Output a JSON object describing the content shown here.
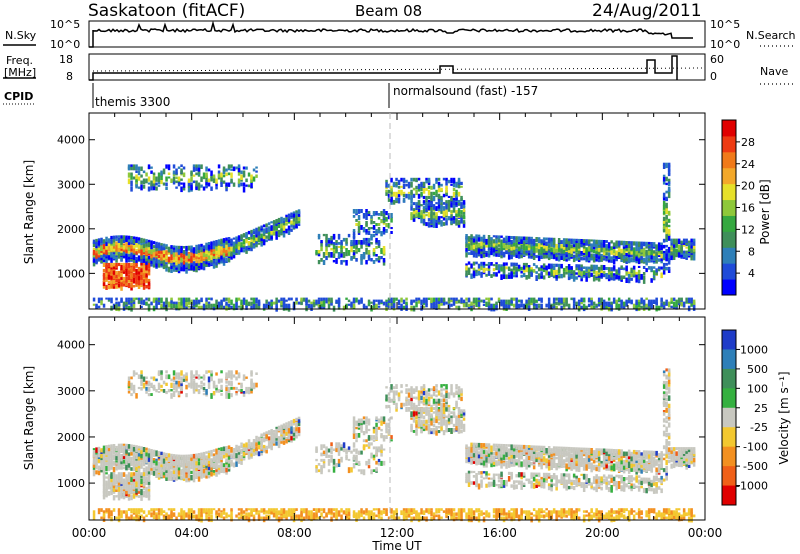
{
  "header": {
    "station": "Saskatoon (fitACF)",
    "beam": "Beam 08",
    "date": "24/Aug/2011"
  },
  "top_panels": {
    "nsky": {
      "left_label": "N.Sky",
      "right_label": "N.Search",
      "right_line_style": "dotted",
      "left_ticks": [
        "10^5",
        "10^0"
      ],
      "right_ticks": [
        "10^5",
        "10^0"
      ]
    },
    "freq": {
      "left_label_1": "Freq.",
      "left_label_2": "[MHz]",
      "right_label": "Nave",
      "right_line_style": "dotted",
      "left_ticks": [
        "18",
        "8"
      ],
      "right_ticks": [
        "60",
        "0"
      ]
    },
    "cpid": {
      "label": "CPID",
      "segments": [
        "themis 3300",
        "normalsound (fast) -157"
      ]
    }
  },
  "chart_data": [
    {
      "type": "heatmap",
      "name": "power",
      "ylabel": "Slant Range [km]",
      "xlabel": "Time UT",
      "x_ticks": [
        "00:00",
        "04:00",
        "08:00",
        "12:00",
        "16:00",
        "20:00",
        "00:00"
      ],
      "y_ticks": [
        "1000",
        "2000",
        "3000",
        "4000"
      ],
      "ylim": [
        200,
        4600
      ],
      "xlim_hours": [
        0,
        24
      ],
      "colorbar": {
        "label": "Power [dB]",
        "ticks": [
          "4",
          "8",
          "12",
          "16",
          "20",
          "24",
          "28"
        ],
        "colors": [
          "#0000ff",
          "#1f4bd8",
          "#2e7fb8",
          "#3f8f5a",
          "#35a840",
          "#8ec83a",
          "#e6e02a",
          "#f3a82a",
          "#f07a1a",
          "#ee3a12",
          "#e00000"
        ]
      }
    },
    {
      "type": "heatmap",
      "name": "velocity",
      "ylabel": "Slant Range [km]",
      "xlabel": "Time UT",
      "x_ticks": [
        "00:00",
        "04:00",
        "08:00",
        "12:00",
        "16:00",
        "20:00",
        "00:00"
      ],
      "y_ticks": [
        "1000",
        "2000",
        "3000",
        "4000"
      ],
      "ylim": [
        200,
        4600
      ],
      "xlim_hours": [
        0,
        24
      ],
      "colorbar": {
        "label": "Velocity [m s⁻¹]",
        "ticks": [
          "1000",
          "500",
          "100",
          "25",
          "-25",
          "-100",
          "-500",
          "-1000"
        ],
        "colors": [
          "#1f3cc8",
          "#2e7fb8",
          "#3f8f5a",
          "#35b040",
          "#c8c8c0",
          "#f3c830",
          "#f39020",
          "#f06018",
          "#e00000"
        ]
      }
    }
  ],
  "axis": {
    "xlabel": "Time UT"
  }
}
